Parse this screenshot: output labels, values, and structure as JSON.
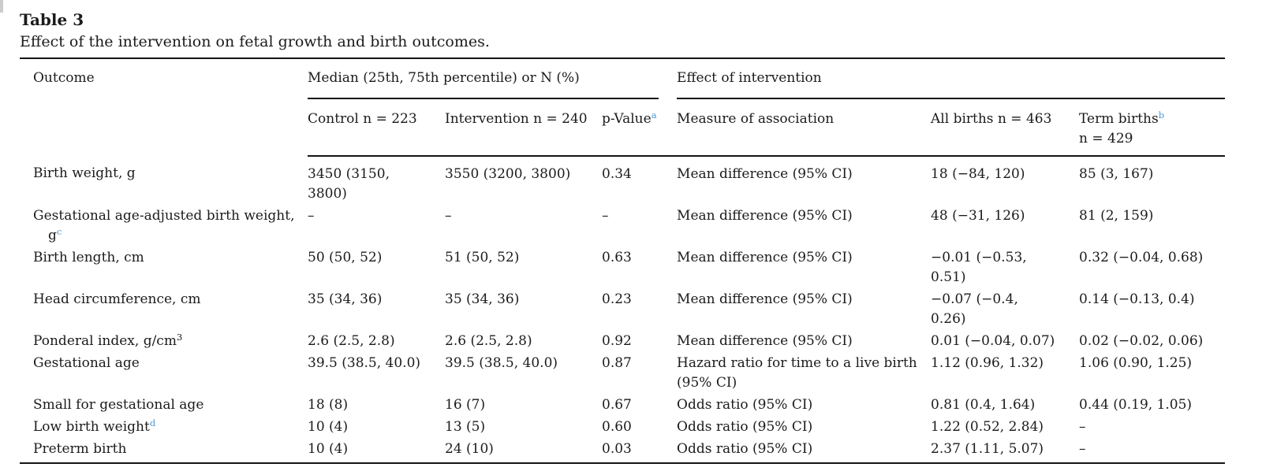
{
  "colors": {
    "footnote_blue": "#4d9ad5",
    "text": "#1b1b1b",
    "rule": "#151515"
  },
  "table": {
    "label": "Table 3",
    "caption": "Effect of the intervention on fetal growth and birth outcomes.",
    "header": {
      "outcome": "Outcome",
      "group_median": "Median (25th, 75th percentile) or N (%)",
      "group_effect": "Effect of intervention",
      "sub": {
        "control": "Control n = 223",
        "intervention": "Intervention n = 240",
        "p_value": "p-Value",
        "p_value_sup": "a",
        "measure": "Measure of association",
        "all_births": "All births n = 463",
        "term_births": "Term births",
        "term_births_sup": "b",
        "term_births_line2": "n = 429"
      }
    },
    "rows": [
      {
        "outcome": {
          "line1": "Birth weight, g"
        },
        "control": "3450 (3150,\n3800)",
        "intervention": "3550 (3200, 3800)",
        "p_value": "0.34",
        "measure": "Mean difference (95% CI)",
        "all_births": "18 (−84, 120)",
        "term_births": "85 (3, 167)"
      },
      {
        "outcome": {
          "line1": "Gestational age-adjusted birth weight,",
          "line2": "g",
          "sup": "c",
          "sup_blue": true
        },
        "control": "–",
        "intervention": "–",
        "p_value": "–",
        "measure": "Mean difference (95% CI)",
        "all_births": "48 (−31, 126)",
        "term_births": "81 (2, 159)"
      },
      {
        "outcome": {
          "line1": "Birth length, cm"
        },
        "control": "50 (50, 52)",
        "intervention": "51 (50, 52)",
        "p_value": "0.63",
        "measure": "Mean difference (95% CI)",
        "all_births": "−0.01 (−0.53,\n0.51)",
        "term_births": "0.32 (−0.04, 0.68)"
      },
      {
        "outcome": {
          "line1": "Head circumference, cm"
        },
        "control": "35 (34, 36)",
        "intervention": "35 (34, 36)",
        "p_value": "0.23",
        "measure": "Mean difference (95% CI)",
        "all_births": "−0.07 (−0.4,\n0.26)",
        "term_births": "0.14 (−0.13, 0.4)"
      },
      {
        "outcome": {
          "line1": "Ponderal index, g/cm",
          "sup": "3",
          "sup_blue": false
        },
        "control": "2.6 (2.5, 2.8)",
        "intervention": "2.6 (2.5, 2.8)",
        "p_value": "0.92",
        "measure": "Mean difference (95% CI)",
        "all_births": "0.01 (−0.04, 0.07)",
        "term_births": "0.02 (−0.02, 0.06)"
      },
      {
        "outcome": {
          "line1": "Gestational age"
        },
        "control": "39.5 (38.5, 40.0)",
        "intervention": "39.5 (38.5, 40.0)",
        "p_value": "0.87",
        "measure": "Hazard ratio for time to a live birth\n(95% CI)",
        "all_births": "1.12 (0.96, 1.32)",
        "term_births": "1.06 (0.90, 1.25)"
      },
      {
        "outcome": {
          "line1": "Small for gestational age"
        },
        "control": "18 (8)",
        "intervention": "16 (7)",
        "p_value": "0.67",
        "measure": "Odds ratio (95% CI)",
        "all_births": "0.81 (0.4, 1.64)",
        "term_births": "0.44 (0.19, 1.05)"
      },
      {
        "outcome": {
          "line1": "Low birth weight",
          "sup": "d",
          "sup_blue": true
        },
        "control": "10 (4)",
        "intervention": "13 (5)",
        "p_value": "0.60",
        "measure": "Odds ratio (95% CI)",
        "all_births": "1.22 (0.52, 2.84)",
        "term_births": "–"
      },
      {
        "outcome": {
          "line1": "Preterm birth"
        },
        "control": "10 (4)",
        "intervention": "24 (10)",
        "p_value": "0.03",
        "measure": "Odds ratio (95% CI)",
        "all_births": "2.37 (1.11, 5.07)",
        "term_births": "–"
      }
    ]
  }
}
